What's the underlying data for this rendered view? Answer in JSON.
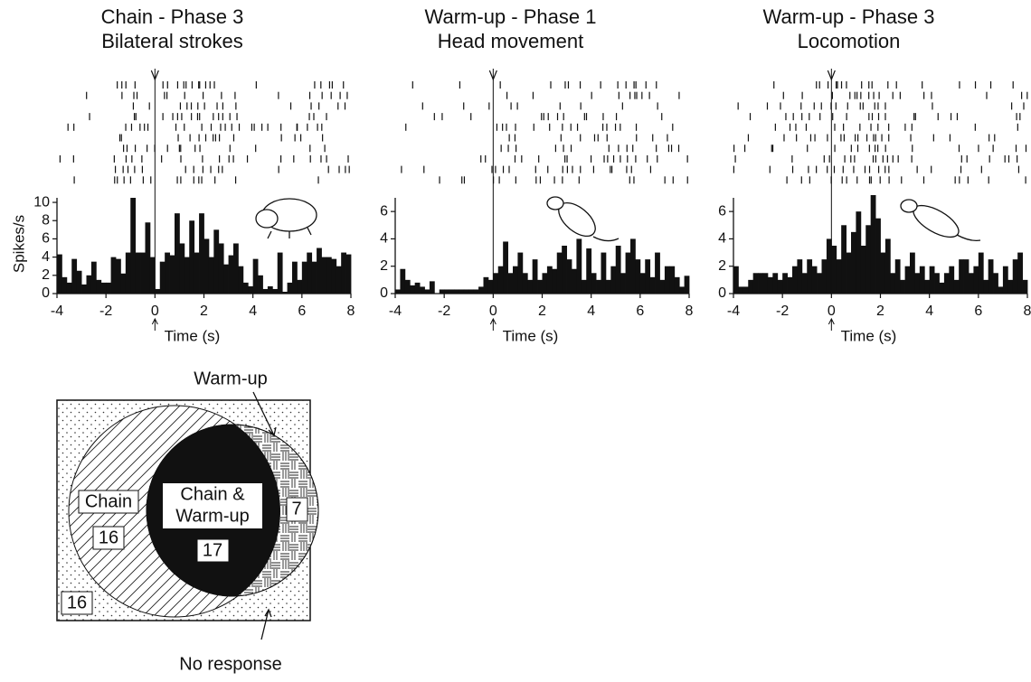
{
  "chart_data": [
    {
      "type": "histogram",
      "title": "Chain - Phase 3",
      "subtitle": "Bilateral strokes",
      "ylabel": "Spikes/s",
      "xlabel": "Time (s)",
      "color": "#111111",
      "bins": [
        -4,
        -3.8,
        -3.6,
        -3.4,
        -3.2,
        -3,
        -2.8,
        -2.6,
        -2.4,
        -2.2,
        -2,
        -1.8,
        -1.6,
        -1.4,
        -1.2,
        -1,
        -0.8,
        -0.6,
        -0.4,
        -0.2,
        0,
        0.2,
        0.4,
        0.6,
        0.8,
        1,
        1.2,
        1.4,
        1.6,
        1.8,
        2,
        2.2,
        2.4,
        2.6,
        2.8,
        3,
        3.2,
        3.4,
        3.6,
        3.8,
        4,
        4.2,
        4.4,
        4.6,
        4.8,
        5,
        5.2,
        5.4,
        5.6,
        5.8,
        6,
        6.2,
        6.4,
        6.6,
        6.8,
        7,
        7.2,
        7.4,
        7.6,
        7.8,
        8
      ],
      "values": [
        4.3,
        1.8,
        1.2,
        3.8,
        2.5,
        1.0,
        2.0,
        3.5,
        1.5,
        1.2,
        1.2,
        4.0,
        3.8,
        2.2,
        4.5,
        10.5,
        4.5,
        4.5,
        7.8,
        4.0,
        0.5,
        3.5,
        4.5,
        4.2,
        8.8,
        5.5,
        4.0,
        8.0,
        4.5,
        8.8,
        6.0,
        4.0,
        7.0,
        5.5,
        3.2,
        4.2,
        5.5,
        3.0,
        1.2,
        0.8,
        3.8,
        2.0,
        0.5,
        0.8,
        0.5,
        4.5,
        0.2,
        1.2,
        3.5,
        1.5,
        3.5,
        4.5,
        3.5,
        5.0,
        4.0,
        4.0,
        3.8,
        3.0,
        4.5,
        4.3
      ],
      "xlim": [
        -4,
        8
      ],
      "ylim": [
        0,
        10.5
      ],
      "xticks": [
        -4,
        -2,
        0,
        2,
        4,
        6,
        8
      ],
      "yticks": [
        0,
        2,
        4,
        6,
        8,
        10
      ]
    },
    {
      "type": "histogram",
      "title": "Warm-up - Phase 1",
      "subtitle": "Head movement",
      "xlabel": "Time (s)",
      "color": "#111111",
      "bins": [
        -4,
        -3.8,
        -3.6,
        -3.4,
        -3.2,
        -3,
        -2.8,
        -2.6,
        -2.4,
        -2.2,
        -2,
        -1.8,
        -1.6,
        -1.4,
        -1.2,
        -1,
        -0.8,
        -0.6,
        -0.4,
        -0.2,
        0,
        0.2,
        0.4,
        0.6,
        0.8,
        1,
        1.2,
        1.4,
        1.6,
        1.8,
        2,
        2.2,
        2.4,
        2.6,
        2.8,
        3,
        3.2,
        3.4,
        3.6,
        3.8,
        4,
        4.2,
        4.4,
        4.6,
        4.8,
        5,
        5.2,
        5.4,
        5.6,
        5.8,
        6,
        6.2,
        6.4,
        6.6,
        6.8,
        7,
        7.2,
        7.4,
        7.6,
        7.8,
        8
      ],
      "values": [
        0.3,
        1.8,
        1.0,
        0.6,
        0.8,
        0.5,
        0.3,
        0.9,
        0.0,
        0.3,
        0.3,
        0.3,
        0.3,
        0.3,
        0.3,
        0.3,
        0.3,
        0.5,
        1.2,
        1.0,
        1.5,
        2.0,
        3.8,
        1.5,
        2.0,
        3.0,
        1.5,
        1.0,
        2.5,
        1.0,
        1.5,
        2.0,
        1.8,
        3.0,
        3.5,
        2.5,
        1.8,
        4.0,
        1.0,
        3.3,
        1.5,
        1.0,
        3.0,
        1.0,
        2.0,
        3.5,
        1.5,
        3.0,
        4.0,
        2.5,
        1.5,
        2.5,
        1.2,
        3.0,
        1.0,
        2.0,
        2.0,
        1.2,
        0.5,
        1.3
      ],
      "xlim": [
        -4,
        8
      ],
      "ylim": [
        0,
        7
      ],
      "xticks": [
        -4,
        -2,
        0,
        2,
        4,
        6,
        8
      ],
      "yticks": [
        0,
        2,
        4,
        6
      ]
    },
    {
      "type": "histogram",
      "title": "Warm-up - Phase 3",
      "subtitle": "Locomotion",
      "xlabel": "Time (s)",
      "color": "#111111",
      "bins": [
        -4,
        -3.8,
        -3.6,
        -3.4,
        -3.2,
        -3,
        -2.8,
        -2.6,
        -2.4,
        -2.2,
        -2,
        -1.8,
        -1.6,
        -1.4,
        -1.2,
        -1,
        -0.8,
        -0.6,
        -0.4,
        -0.2,
        0,
        0.2,
        0.4,
        0.6,
        0.8,
        1,
        1.2,
        1.4,
        1.6,
        1.8,
        2,
        2.2,
        2.4,
        2.6,
        2.8,
        3,
        3.2,
        3.4,
        3.6,
        3.8,
        4,
        4.2,
        4.4,
        4.6,
        4.8,
        5,
        5.2,
        5.4,
        5.6,
        5.8,
        6,
        6.2,
        6.4,
        6.6,
        6.8,
        7,
        7.2,
        7.4,
        7.6,
        7.8,
        8
      ],
      "values": [
        2.0,
        0.5,
        0.5,
        1.0,
        1.5,
        1.5,
        1.5,
        1.2,
        1.5,
        1.0,
        1.5,
        1.2,
        2.0,
        2.5,
        1.5,
        2.5,
        2.0,
        1.5,
        2.5,
        4.0,
        3.5,
        2.5,
        5.0,
        3.0,
        4.5,
        6.0,
        3.5,
        5.0,
        7.2,
        5.5,
        3.0,
        4.0,
        1.5,
        2.5,
        1.0,
        2.0,
        3.0,
        1.5,
        2.0,
        1.0,
        2.0,
        1.5,
        0.8,
        1.5,
        2.0,
        1.0,
        2.5,
        2.5,
        1.5,
        2.0,
        3.0,
        1.0,
        2.5,
        1.5,
        0.5,
        2.0,
        1.0,
        2.5,
        3.0,
        1.0
      ],
      "xlim": [
        -4,
        8
      ],
      "ylim": [
        0,
        7
      ],
      "xticks": [
        -4,
        -2,
        0,
        2,
        4,
        6,
        8
      ],
      "yticks": [
        0,
        2,
        4,
        6
      ]
    }
  ],
  "venn": {
    "label_warm_up": "Warm-up",
    "label_no_response": "No response",
    "label_chain": "Chain",
    "label_both": [
      "Chain &",
      "Warm-up"
    ],
    "count_chain_only": 16,
    "count_both": 17,
    "count_warm_up_only": 7,
    "count_no_response": 16
  }
}
